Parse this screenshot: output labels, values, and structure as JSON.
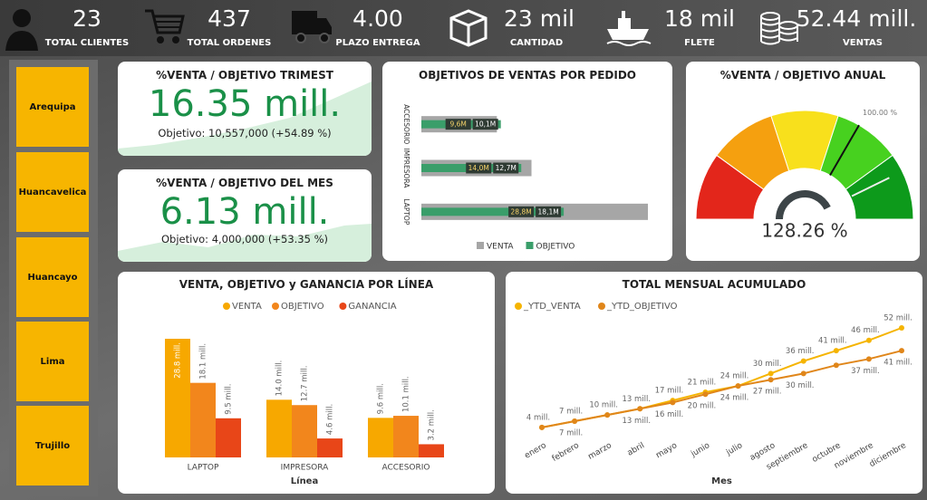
{
  "kpis": [
    {
      "value": "23",
      "label": "TOTAL CLIENTES"
    },
    {
      "value": "437",
      "label": "TOTAL ORDENES"
    },
    {
      "value": "4.00",
      "label": "PLAZO ENTREGA"
    },
    {
      "value": "23 mil",
      "label": "CANTIDAD"
    },
    {
      "value": "18 mil",
      "label": "FLETE"
    },
    {
      "value": "52.44 mill.",
      "label": "VENTAS"
    }
  ],
  "slicer": [
    "Arequipa",
    "Huancavelica",
    "Huancayo",
    "Lima",
    "Trujillo"
  ],
  "cards": [
    {
      "title": "%VENTA / OBJETIVO TRIMEST",
      "value": "16.35 mill.",
      "subtitle": "Objetivo: 10,557,000 (+54.89 %)"
    },
    {
      "title": "%VENTA / OBJETIVO DEL MES",
      "value": "6.13 mill.",
      "subtitle": "Objetivo: 4,000,000 (+53.35 %)"
    }
  ],
  "chart_data": [
    {
      "type": "hbar",
      "title": "OBJETIVOS DE VENTAS POR PEDIDO",
      "categories": [
        "ACCESORIO",
        "IMPRESORA",
        "LAPTOP"
      ],
      "series": [
        {
          "name": "VENTA",
          "color": "#a6a6a6",
          "values": [
            9.6,
            14.0,
            28.8
          ],
          "value_labels": [
            "9,6M",
            "14,0M",
            "28,8M"
          ]
        },
        {
          "name": "OBJETIVO",
          "color": "#3a9e6a",
          "values": [
            10.1,
            12.7,
            18.1
          ],
          "value_labels": [
            "10,1M",
            "12,7M",
            "18,1M"
          ]
        }
      ]
    },
    {
      "type": "gauge",
      "title": "%VENTA / OBJETIVO ANUAL",
      "values": [
        128.26
      ],
      "value_labels": [
        "128.26 %"
      ],
      "target": 100,
      "target_label": "100.00 %",
      "range": [
        0,
        150
      ],
      "band_colors": [
        "#e3261b",
        "#f5a00f",
        "#f8e01c",
        "#47d11f",
        "#0d9a1b"
      ]
    },
    {
      "type": "column",
      "title": "VENTA, OBJETIVO y GANANCIA POR LÍNEA",
      "x_label": "Línea",
      "categories": [
        "LAPTOP",
        "IMPRESORA",
        "ACCESORIO"
      ],
      "series": [
        {
          "name": "VENTA",
          "color": "#f7a800",
          "values": [
            28.8,
            14.0,
            9.6
          ],
          "value_labels": [
            "28.8 mill.",
            "14.0 mill.",
            "9.6 mill."
          ]
        },
        {
          "name": "OBJETIVO",
          "color": "#f2861c",
          "values": [
            18.1,
            12.7,
            10.1
          ],
          "value_labels": [
            "18.1 mill.",
            "12.7 mill.",
            "10.1 mill."
          ]
        },
        {
          "name": "GANANCIA",
          "color": "#e84618",
          "values": [
            9.5,
            4.6,
            3.2
          ],
          "value_labels": [
            "9.5 mill.",
            "4.6 mill.",
            "3.2 mill."
          ]
        }
      ]
    },
    {
      "type": "line",
      "title": "TOTAL MENSUAL ACUMULADO",
      "x_label": "Mes",
      "categories": [
        "enero",
        "febrero",
        "marzo",
        "abril",
        "mayo",
        "junio",
        "julio",
        "agosto",
        "septiembre",
        "octubre",
        "noviembre",
        "diciembre"
      ],
      "series": [
        {
          "name": "_YTD_VENTA",
          "color": "#f5b400",
          "values": [
            4,
            7,
            10,
            13,
            17,
            21,
            24,
            30,
            36,
            41,
            46,
            52
          ],
          "value_labels": [
            "4 mill.",
            "7 mill.",
            "10 mill.",
            "13 mill.",
            "17 mill.",
            "21 mill.",
            "24 mill.",
            "30 mill.",
            "36 mill.",
            "41 mill.",
            "46 mill.",
            "52 mill."
          ]
        },
        {
          "name": "_YTD_OBJETIVO",
          "color": "#e0861a",
          "values": [
            4,
            7,
            10,
            13,
            16,
            20,
            24,
            27,
            30,
            34,
            37,
            41
          ],
          "value_labels": [
            null,
            "7 mill.",
            null,
            "13 mill.",
            "16 mill.",
            "20 mill.",
            "24 mill.",
            "27 mill.",
            "30 mill.",
            null,
            "37 mill.",
            "41 mill."
          ]
        }
      ]
    }
  ]
}
